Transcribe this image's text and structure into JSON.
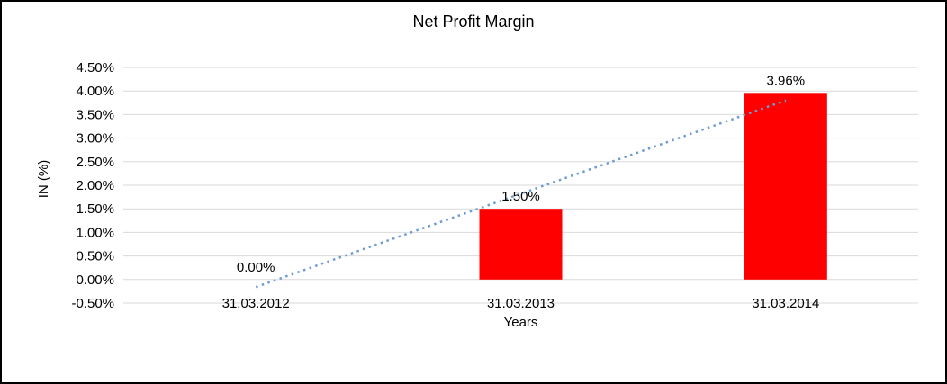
{
  "chart_data": {
    "type": "bar",
    "title": "Net Profit Margin",
    "xlabel": "Years",
    "ylabel": "IN (%)",
    "categories": [
      "31.03.2012",
      "31.03.2013",
      "31.03.2014"
    ],
    "values": [
      0.0,
      1.5,
      3.96
    ],
    "data_labels": [
      "0.00%",
      "1.50%",
      "3.96%"
    ],
    "ylim": [
      -0.5,
      4.5
    ],
    "ytick_step": 0.5,
    "ytick_labels": [
      "4.50%",
      "4.00%",
      "3.50%",
      "3.00%",
      "2.50%",
      "2.00%",
      "1.50%",
      "1.00%",
      "0.50%",
      "0.00%",
      "-0.50%"
    ],
    "grid": true,
    "legend": "none",
    "bar_color": "#FF0000",
    "gridline_color": "#D9D9D9",
    "trendline": {
      "style": "dotted",
      "color": "#6E9CD2",
      "start_value": -0.16,
      "end_value": 3.8
    }
  }
}
